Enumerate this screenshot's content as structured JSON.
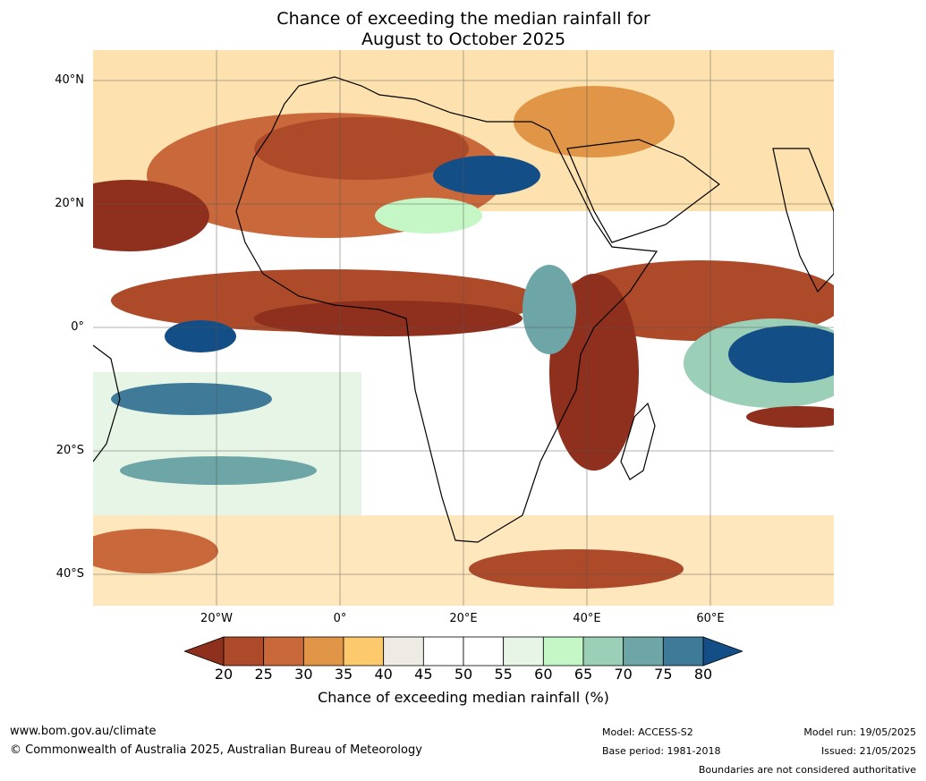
{
  "title": {
    "line1": "Chance of exceeding the median rainfall for",
    "line2": "August to October 2025"
  },
  "map": {
    "lat_labels": [
      "40°N",
      "20°N",
      "0°",
      "20°S",
      "40°S"
    ],
    "lon_labels": [
      "20°W",
      "0°",
      "20°E",
      "40°E",
      "60°E"
    ]
  },
  "colorbar": {
    "ticks": [
      "20",
      "25",
      "30",
      "35",
      "40",
      "45",
      "50",
      "55",
      "60",
      "65",
      "70",
      "75",
      "80"
    ],
    "colors": [
      "#8f2f1d",
      "#ad4a2a",
      "#c9683a",
      "#e09547",
      "#fcca6d",
      "#eeebe5",
      "#ffffff",
      "#ffffff",
      "#e6f5e6",
      "#c5f6c5",
      "#9ccfb8",
      "#6ea5a6",
      "#3f7a98",
      "#144e86"
    ],
    "label": "Chance of exceeding median rainfall (%)"
  },
  "footer": {
    "website": "www.bom.gov.au/climate",
    "copyright": "© Commonwealth of Australia 2025, Australian Bureau of Meteorology",
    "model": "Model: ACCESS-S2",
    "base_period": "Base period: 1981-2018",
    "model_run": "Model run: 19/05/2025",
    "issued": "Issued: 21/05/2025",
    "disclaimer": "Boundaries are not considered authoritative"
  }
}
